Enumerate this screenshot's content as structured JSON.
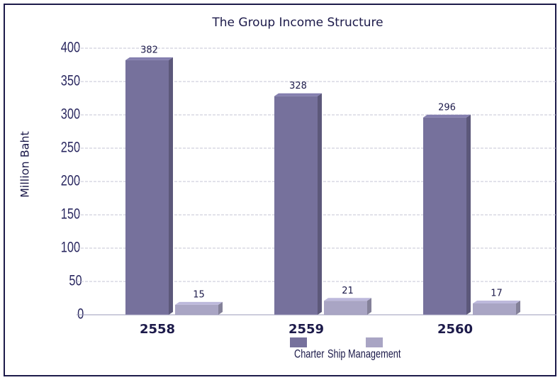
{
  "chart_data": {
    "type": "bar",
    "title": "The Group Income Structure",
    "y_label": "Million Baht",
    "categories": [
      "2558",
      "2559",
      "2560"
    ],
    "series": [
      {
        "name": "Charter",
        "color": "#76719c",
        "values": [
          382,
          328,
          296
        ]
      },
      {
        "name": "Ship Management",
        "color": "#a9a5c4",
        "values": [
          15,
          21,
          17
        ]
      }
    ],
    "ylim": [
      0,
      400
    ],
    "yticks": [
      0,
      50,
      100,
      150,
      200,
      250,
      300,
      350,
      400
    ],
    "grid": true
  }
}
